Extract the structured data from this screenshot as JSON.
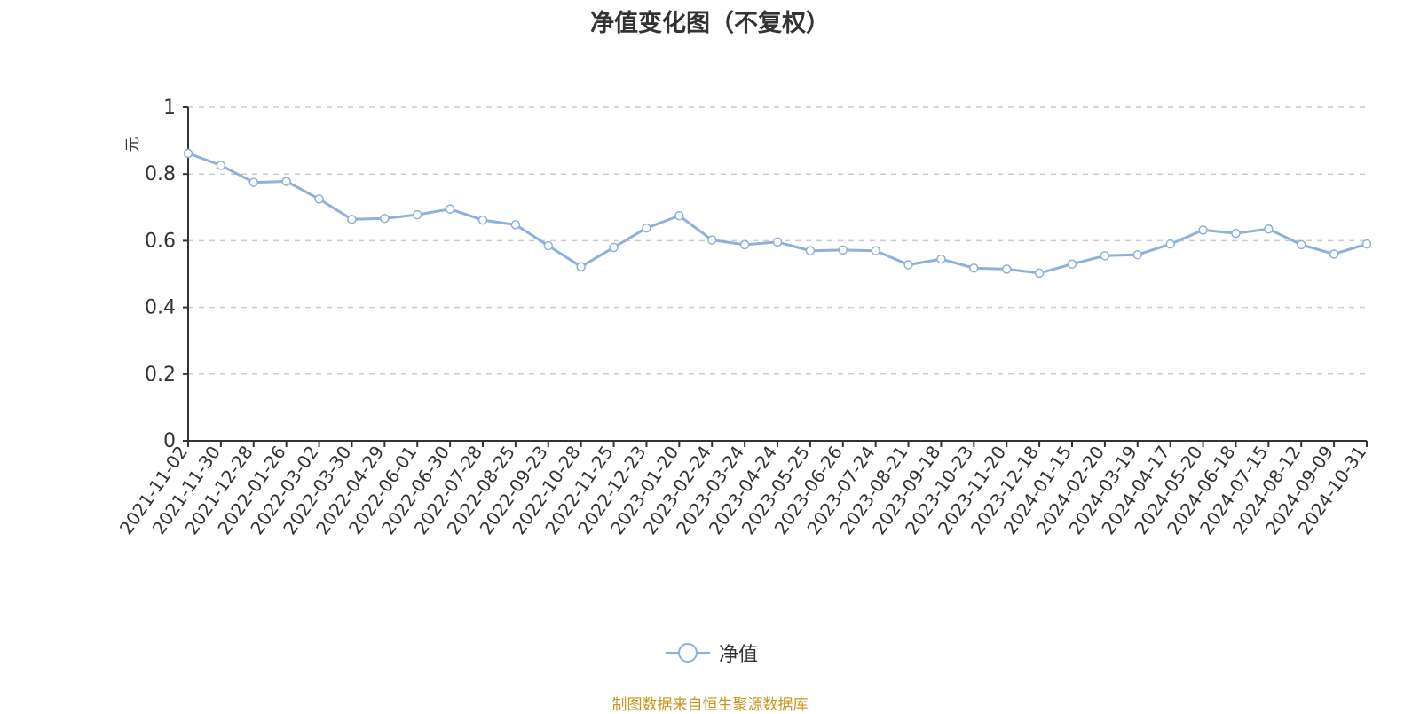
{
  "chart_data": {
    "type": "line",
    "title": "净值变化图（不复权）",
    "ylabel": "元",
    "ylim": [
      0,
      1
    ],
    "yticks": [
      0,
      0.2,
      0.4,
      0.6,
      0.8,
      1
    ],
    "ytick_labels": [
      "0",
      "0.2",
      "0.4",
      "0.6",
      "0.8",
      "1"
    ],
    "grid": true,
    "legend_position": "bottom-center",
    "x": [
      "2021-11-02",
      "2021-11-30",
      "2021-12-28",
      "2022-01-26",
      "2022-03-02",
      "2022-03-30",
      "2022-04-29",
      "2022-06-01",
      "2022-06-30",
      "2022-07-28",
      "2022-08-25",
      "2022-09-23",
      "2022-10-28",
      "2022-11-25",
      "2022-12-23",
      "2023-01-20",
      "2023-02-24",
      "2023-03-24",
      "2023-04-24",
      "2023-05-25",
      "2023-06-26",
      "2023-07-24",
      "2023-08-21",
      "2023-09-18",
      "2023-10-23",
      "2023-11-20",
      "2023-12-18",
      "2024-01-15",
      "2024-02-20",
      "2024-03-19",
      "2024-04-17",
      "2024-05-20",
      "2024-06-18",
      "2024-07-15",
      "2024-08-12",
      "2024-09-09",
      "2024-10-31"
    ],
    "series": [
      {
        "name": "净值",
        "color": "#8eb0dc",
        "values": [
          0.862,
          0.826,
          0.775,
          0.778,
          0.725,
          0.664,
          0.667,
          0.678,
          0.695,
          0.662,
          0.648,
          0.585,
          0.522,
          0.58,
          0.638,
          0.675,
          0.602,
          0.588,
          0.596,
          0.57,
          0.572,
          0.57,
          0.528,
          0.545,
          0.518,
          0.515,
          0.503,
          0.53,
          0.555,
          0.558,
          0.59,
          0.632,
          0.622,
          0.635,
          0.588,
          0.56,
          0.59
        ]
      }
    ]
  },
  "legend": {
    "label": "净值"
  },
  "source_note": "制图数据来自恒生聚源数据库",
  "colors": {
    "line": "#8eb0dc",
    "ylabel": "#e8312a",
    "source": "#c8961e",
    "grid": "#cccccc"
  }
}
